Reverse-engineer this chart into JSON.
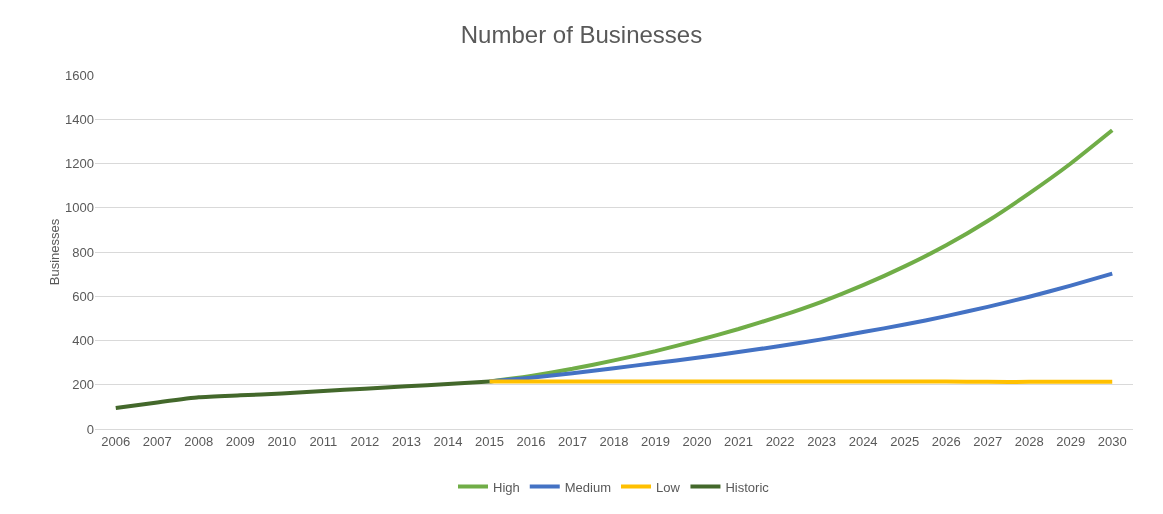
{
  "chart_data": {
    "type": "line",
    "title": "Number of Businesses",
    "ylabel": "Businesses",
    "categories": [
      "2006",
      "2007",
      "2008",
      "2009",
      "2010",
      "2011",
      "2012",
      "2013",
      "2014",
      "2015",
      "2016",
      "2017",
      "2018",
      "2019",
      "2020",
      "2021",
      "2022",
      "2023",
      "2024",
      "2025",
      "2026",
      "2027",
      "2028",
      "2029",
      "2030"
    ],
    "series": [
      {
        "name": "High",
        "color": "#70ad47",
        "values": [
          null,
          null,
          null,
          null,
          null,
          null,
          null,
          null,
          null,
          215,
          240,
          272,
          310,
          352,
          400,
          452,
          510,
          575,
          650,
          735,
          830,
          940,
          1065,
          1200,
          1350
        ]
      },
      {
        "name": "Medium",
        "color": "#4472c4",
        "values": [
          null,
          null,
          null,
          null,
          null,
          null,
          null,
          null,
          null,
          215,
          232,
          252,
          275,
          298,
          322,
          348,
          375,
          405,
          438,
          472,
          510,
          552,
          598,
          648,
          702
        ]
      },
      {
        "name": "Low",
        "color": "#ffc000",
        "values": [
          null,
          null,
          null,
          null,
          null,
          null,
          null,
          null,
          null,
          215,
          215,
          215,
          215,
          215,
          215,
          215,
          215,
          215,
          215,
          215,
          215,
          213,
          213,
          213,
          213
        ]
      },
      {
        "name": "Historic",
        "color": "#43682b",
        "values": [
          95,
          120,
          143,
          152,
          161,
          172,
          182,
          193,
          203,
          215,
          null,
          null,
          null,
          null,
          null,
          null,
          null,
          null,
          null,
          null,
          null,
          null,
          null,
          null,
          null
        ]
      }
    ],
    "ylim": [
      0,
      1600
    ],
    "yticks": [
      0,
      200,
      400,
      600,
      800,
      1000,
      1200,
      1400,
      1600
    ],
    "grid": "y",
    "legend": "bottom",
    "marker": "none",
    "line_style": "solid"
  }
}
